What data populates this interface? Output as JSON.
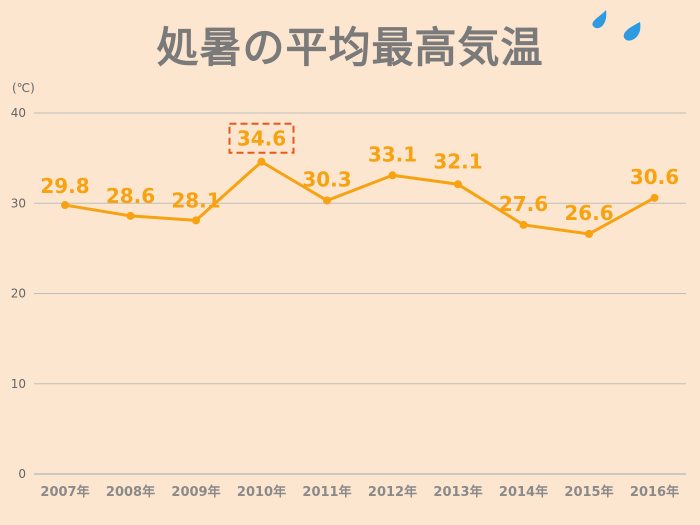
{
  "title": "処暑の平均最高気温",
  "chart_data": {
    "type": "line",
    "ylabel": "(℃)",
    "ylim": [
      0,
      40
    ],
    "yticks": [
      0,
      10,
      20,
      30,
      40
    ],
    "categories": [
      "2007年",
      "2008年",
      "2009年",
      "2010年",
      "2011年",
      "2012年",
      "2013年",
      "2014年",
      "2015年",
      "2016年"
    ],
    "series": [
      {
        "values": [
          29.8,
          28.6,
          28.1,
          34.6,
          30.3,
          33.1,
          32.1,
          27.6,
          26.6,
          30.6
        ]
      }
    ],
    "data_labels": [
      "29.8",
      "28.6",
      "28.1",
      "34.6",
      "30.3",
      "33.1",
      "32.1",
      "27.6",
      "26.6",
      "30.6"
    ],
    "highlight_index": 3,
    "grid": true,
    "colors": {
      "line": "#F7A211",
      "label": "#F7A211",
      "highlight_box": "#E8581B",
      "grid": "#BDBDBD",
      "drop": "#2E9BE0"
    }
  }
}
